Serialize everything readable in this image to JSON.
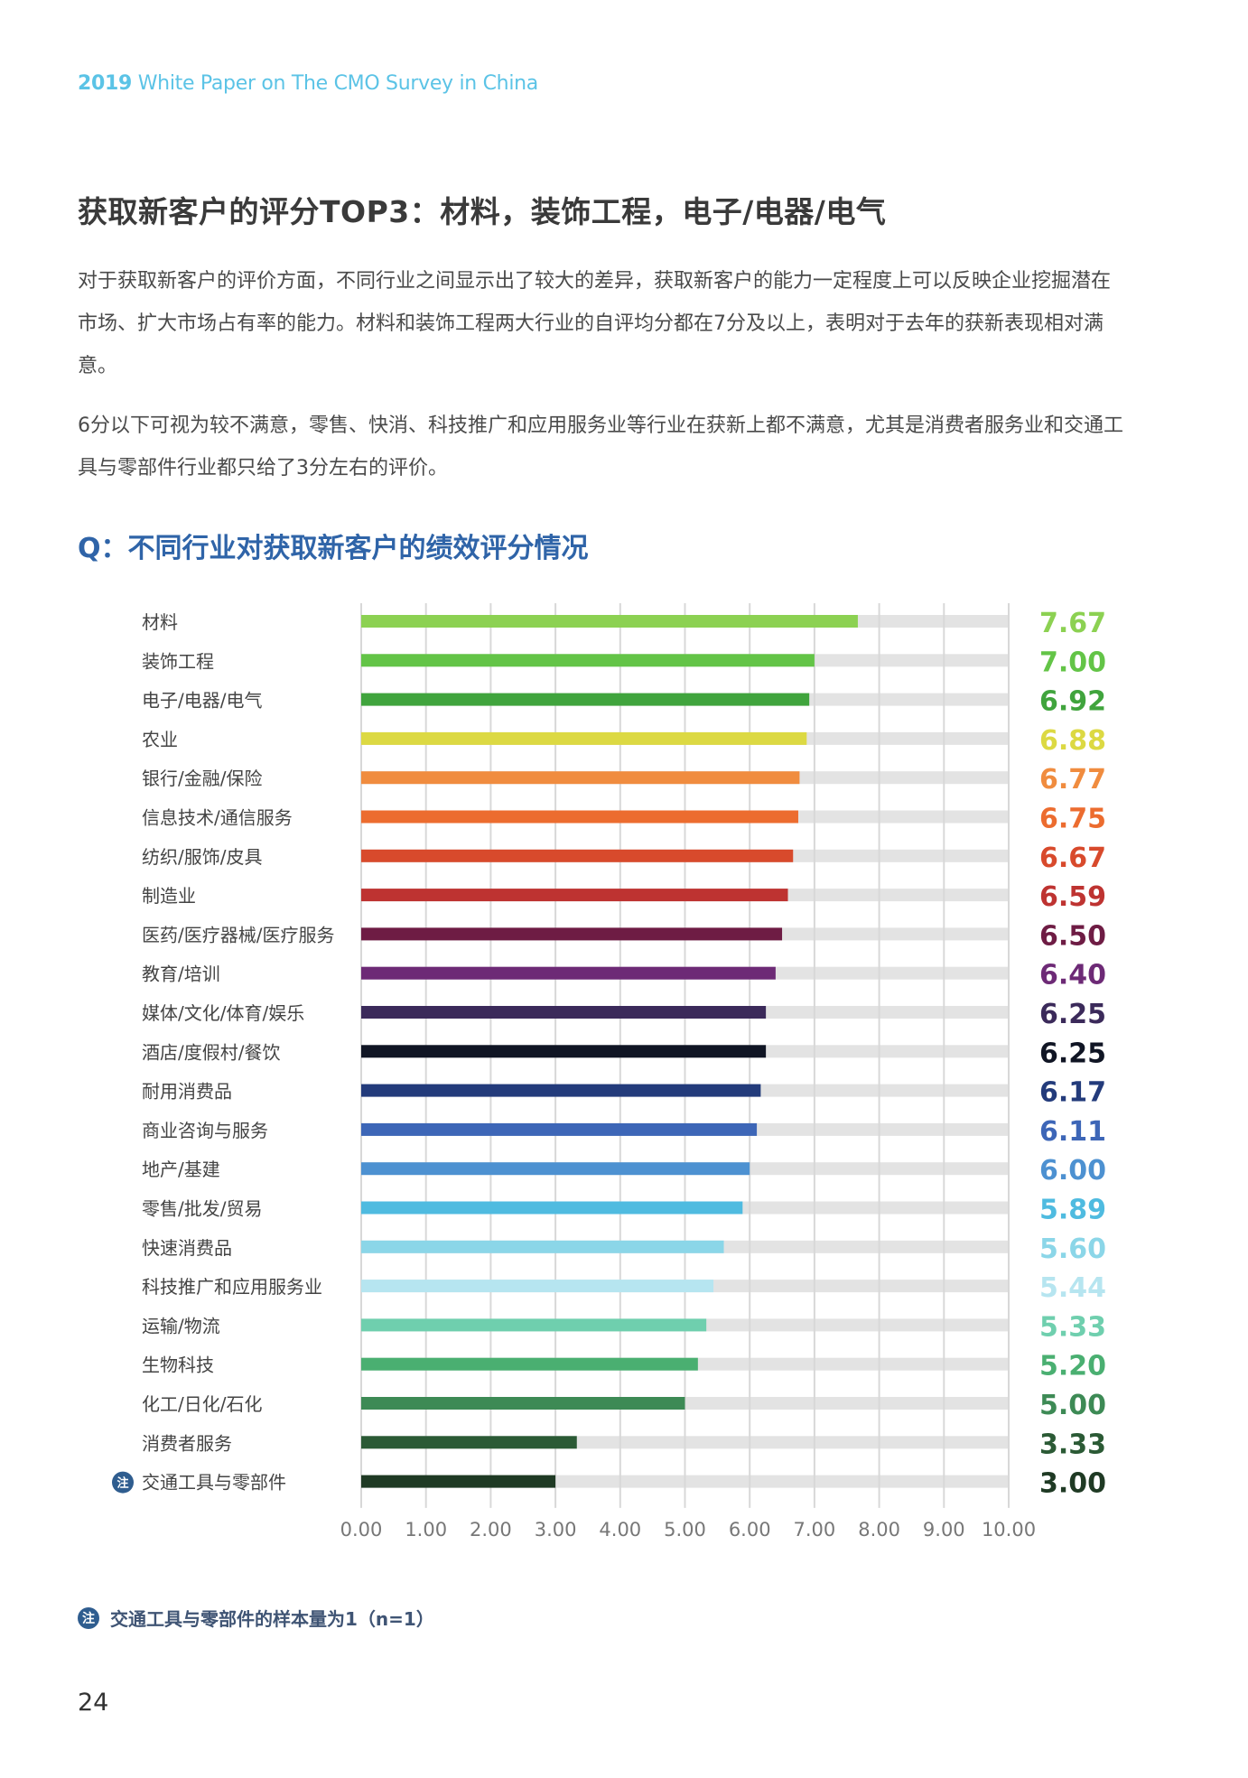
{
  "header": {
    "year": "2019",
    "title": " White Paper on The CMO Survey in China"
  },
  "section_title": "获取新客户的评分TOP3：材料，装饰工程，电子/电器/电气",
  "paragraphs": [
    "对于获取新客户的评价方面，不同行业之间显示出了较大的差异，获取新客户的能力一定程度上可以反映企业挖掘潜在市场、扩大市场占有率的能力。材料和装饰工程两大行业的自评均分都在7分及以上，表明对于去年的获新表现相对满意。",
    "6分以下可视为较不满意，零售、快消、科技推广和应用服务业等行业在获新上都不满意，尤其是消费者服务业和交通工具与零部件行业都只给了3分左右的评价。"
  ],
  "question_title": "Q：不同行业对获取新客户的绩效评分情况",
  "note_badge": "注",
  "chart_data": {
    "type": "bar",
    "orientation": "horizontal",
    "title": "Q：不同行业对获取新客户的绩效评分情况",
    "xlim": [
      0,
      10
    ],
    "xticks": [
      "0.00",
      "1.00",
      "2.00",
      "3.00",
      "4.00",
      "5.00",
      "6.00",
      "7.00",
      "8.00",
      "9.00",
      "10.00"
    ],
    "grid": true,
    "background_bar_color": "#e3e3e3",
    "categories": [
      "材料",
      "装饰工程",
      "电子/电器/电气",
      "农业",
      "银行/金融/保险",
      "信息技术/通信服务",
      "纺织/服饰/皮具",
      "制造业",
      "医药/医疗器械/医疗服务",
      "教育/培训",
      "媒体/文化/体育/娱乐",
      "酒店/度假村/餐饮",
      "耐用消费品",
      "商业咨询与服务",
      "地产/基建",
      "零售/批发/贸易",
      "快速消费品",
      "科技推广和应用服务业",
      "运输/物流",
      "生物科技",
      "化工/日化/石化",
      "消费者服务",
      "交通工具与零部件"
    ],
    "values": [
      7.67,
      7.0,
      6.92,
      6.88,
      6.77,
      6.75,
      6.67,
      6.59,
      6.5,
      6.4,
      6.25,
      6.25,
      6.17,
      6.11,
      6.0,
      5.89,
      5.6,
      5.44,
      5.33,
      5.2,
      5.0,
      3.33,
      3.0
    ],
    "value_labels": [
      "7.67",
      "7.00",
      "6.92",
      "6.88",
      "6.77",
      "6.75",
      "6.67",
      "6.59",
      "6.50",
      "6.40",
      "6.25",
      "6.25",
      "6.17",
      "6.11",
      "6.00",
      "5.89",
      "5.60",
      "5.44",
      "5.33",
      "5.20",
      "5.00",
      "3.33",
      "3.00"
    ],
    "colors": [
      "#8cd152",
      "#63c447",
      "#40a43d",
      "#dcd943",
      "#f08c3f",
      "#ec6c2f",
      "#d84a2c",
      "#be3331",
      "#6e1c44",
      "#6d2a76",
      "#3b2a5a",
      "#101524",
      "#233b7b",
      "#3d66b7",
      "#4d91d1",
      "#4fbbe0",
      "#8bd6e8",
      "#b6e5f0",
      "#6fcfae",
      "#4aaf71",
      "#3d8a55",
      "#2b5a35",
      "#1f3a24"
    ],
    "annotated_category": "交通工具与零部件",
    "annotation_badge": "注"
  },
  "footnote": "交通工具与零部件的样本量为1（n=1）",
  "page_number": "24"
}
